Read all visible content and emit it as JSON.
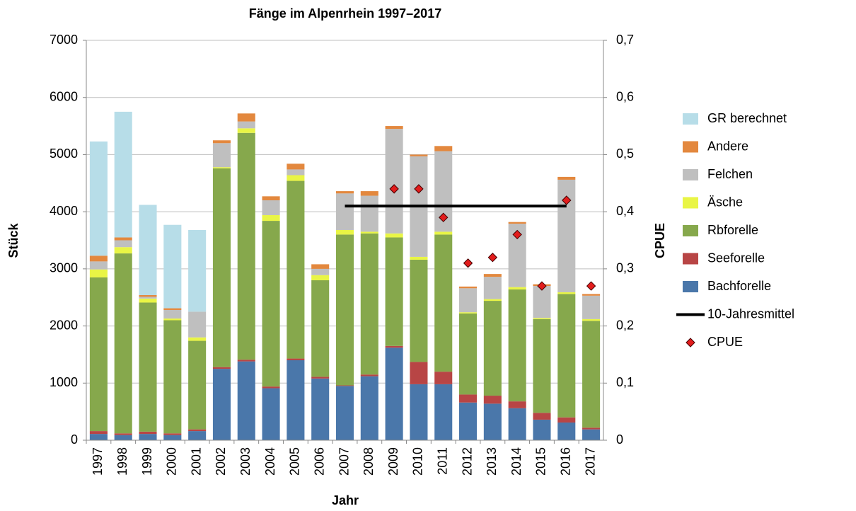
{
  "chart_data": {
    "type": "bar",
    "stacked": true,
    "title": "Fänge im Alpenrhein 1997–2017",
    "x_label": "Jahr",
    "y_label": "Stück",
    "y2_label": "CPUE",
    "categories": [
      "1997",
      "1998",
      "1999",
      "2000",
      "2001",
      "2002",
      "2003",
      "2004",
      "2005",
      "2006",
      "2007",
      "2008",
      "2009",
      "2010",
      "2011",
      "2012",
      "2013",
      "2014",
      "2015",
      "2016",
      "2017"
    ],
    "ylim": [
      0,
      7000
    ],
    "yticks": [
      0,
      1000,
      2000,
      3000,
      4000,
      5000,
      6000,
      7000
    ],
    "y2lim": [
      0,
      0.7
    ],
    "y2ticks": [
      0,
      {
        "value": 0.1,
        "label": "0,1"
      },
      {
        "value": 0.2,
        "label": "0,2"
      },
      {
        "value": 0.3,
        "label": "0,3"
      },
      {
        "value": 0.4,
        "label": "0,4"
      },
      {
        "value": 0.5,
        "label": "0,5"
      },
      {
        "value": 0.6,
        "label": "0,6"
      },
      {
        "value": 0.7,
        "label": "0,7"
      }
    ],
    "legend": "right",
    "series": [
      {
        "name": "GR berechnet",
        "type": "bar",
        "color": "#b7dde8",
        "values": [
          2000,
          2200,
          1580,
          1460,
          1430,
          0,
          0,
          0,
          0,
          0,
          0,
          0,
          0,
          0,
          0,
          0,
          0,
          0,
          0,
          0,
          0
        ]
      },
      {
        "name": "Andere",
        "type": "bar",
        "color": "#e3883e",
        "values": [
          100,
          50,
          30,
          30,
          0,
          50,
          140,
          70,
          100,
          80,
          40,
          80,
          50,
          30,
          90,
          30,
          50,
          30,
          30,
          50,
          30
        ]
      },
      {
        "name": "Felchen",
        "type": "bar",
        "color": "#bfbfbf",
        "values": [
          140,
          120,
          30,
          150,
          450,
          420,
          120,
          260,
          100,
          110,
          640,
          630,
          1830,
          1760,
          1410,
          420,
          390,
          1110,
          560,
          1970,
          410
        ]
      },
      {
        "name": "Äsche",
        "type": "bar",
        "color": "#e9f545",
        "values": [
          140,
          110,
          70,
          30,
          60,
          20,
          80,
          100,
          100,
          90,
          80,
          30,
          70,
          50,
          50,
          20,
          30,
          40,
          20,
          30,
          30
        ]
      },
      {
        "name": "Rbforelle",
        "type": "bar",
        "color": "#86a84c",
        "values": [
          2690,
          3150,
          2260,
          1980,
          1550,
          3480,
          3970,
          2900,
          3110,
          1690,
          2640,
          2470,
          1900,
          1790,
          2400,
          1420,
          1660,
          1960,
          1640,
          2160,
          1870
        ]
      },
      {
        "name": "Seeforelle",
        "type": "bar",
        "color": "#b84545",
        "values": [
          50,
          30,
          40,
          30,
          30,
          30,
          30,
          30,
          30,
          30,
          10,
          30,
          30,
          390,
          220,
          140,
          140,
          120,
          120,
          90,
          30
        ]
      },
      {
        "name": "Bachforelle",
        "type": "bar",
        "color": "#4a77aa",
        "values": [
          110,
          90,
          110,
          90,
          160,
          1250,
          1380,
          910,
          1400,
          1080,
          950,
          1120,
          1620,
          980,
          980,
          660,
          640,
          560,
          360,
          310,
          190
        ]
      },
      {
        "name": "10-Jahresmittel",
        "type": "line",
        "axis": "y2",
        "color": "#000000",
        "values": [
          null,
          null,
          null,
          null,
          null,
          null,
          null,
          null,
          null,
          null,
          0.41,
          0.41,
          0.41,
          0.41,
          0.41,
          0.41,
          0.41,
          0.41,
          0.41,
          0.41,
          null
        ]
      },
      {
        "name": "CPUE",
        "type": "scatter",
        "axis": "y2",
        "color": "#e21c1c",
        "values": [
          null,
          null,
          null,
          null,
          null,
          null,
          null,
          null,
          null,
          null,
          null,
          null,
          0.44,
          0.44,
          0.39,
          0.31,
          0.32,
          0.36,
          0.27,
          0.42,
          0.27
        ]
      }
    ]
  }
}
